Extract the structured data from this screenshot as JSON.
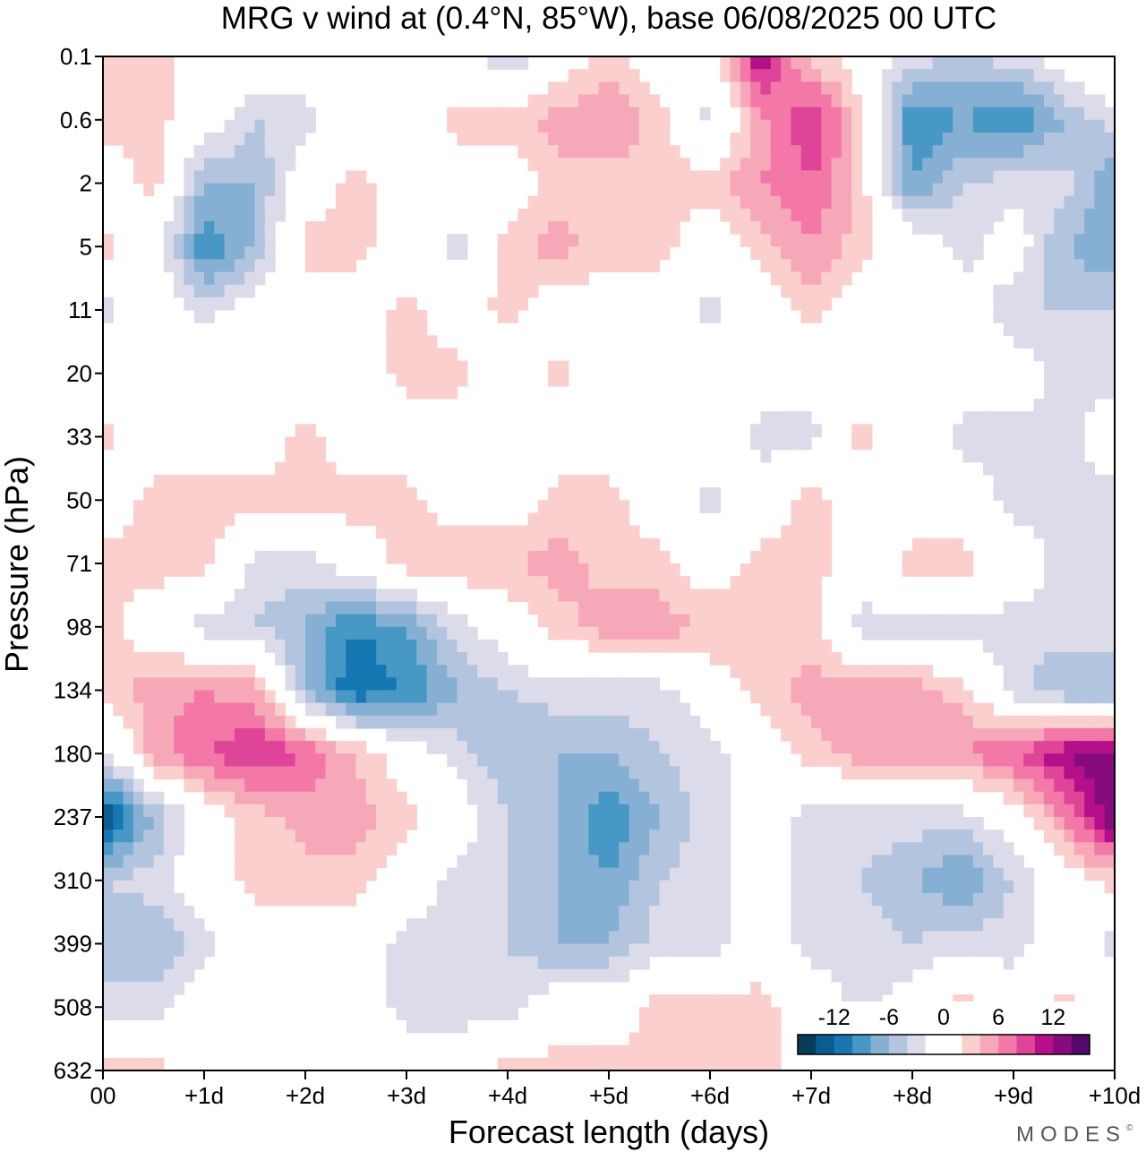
{
  "chart_data": {
    "type": "heatmap",
    "title": "MRG v wind at (0.4°N, 85°W),  base 06/08/2025  00 UTC",
    "xlabel": "Forecast length (days)",
    "ylabel": "Pressure (hPa)",
    "x_days": [
      0,
      0.5,
      1,
      1.5,
      2,
      2.5,
      3,
      3.5,
      4,
      4.5,
      5,
      5.5,
      6,
      6.5,
      7,
      7.5,
      8,
      8.5,
      9,
      9.5,
      10
    ],
    "x_ticks": [
      0,
      1,
      2,
      3,
      4,
      5,
      6,
      7,
      8,
      9,
      10
    ],
    "x_tick_labels": [
      "00",
      "+1d",
      "+2d",
      "+3d",
      "+4d",
      "+5d",
      "+6d",
      "+7d",
      "+8d",
      "+9d",
      "+10d"
    ],
    "pressure_levels": [
      0.1,
      0.6,
      2,
      5,
      11,
      20,
      33,
      50,
      71,
      98,
      134,
      180,
      237,
      310,
      399,
      508,
      632
    ],
    "y_tick_labels": [
      "0.1",
      "0.6",
      "2",
      "5",
      "11",
      "20",
      "33",
      "50",
      "71",
      "98",
      "134",
      "180",
      "237",
      "310",
      "399",
      "508",
      "632"
    ],
    "xlim": [
      0,
      10
    ],
    "ylim": [
      0.1,
      632
    ],
    "units": "m/s",
    "values": [
      [
        3,
        3,
        0,
        0,
        0,
        0,
        0,
        0,
        -4,
        0,
        3,
        0,
        0,
        12,
        3,
        0,
        -3,
        -4,
        -3,
        0,
        2
      ],
      [
        3,
        3,
        0,
        -4,
        -3,
        0,
        0,
        3,
        3,
        5,
        6,
        3,
        -3,
        5,
        10,
        3,
        -10,
        -8,
        -10,
        -6,
        -3
      ],
      [
        0,
        3,
        -6,
        -6,
        0,
        3,
        0,
        0,
        0,
        3,
        3,
        3,
        3,
        6,
        8,
        3,
        -8,
        -4,
        -3,
        -3,
        -8
      ],
      [
        3,
        0,
        -10,
        -6,
        3,
        3,
        0,
        -3,
        3,
        5,
        3,
        3,
        0,
        3,
        6,
        3,
        0,
        -3,
        0,
        -6,
        -8
      ],
      [
        -3,
        0,
        -3,
        0,
        0,
        0,
        3,
        0,
        3,
        0,
        0,
        0,
        -3,
        0,
        3,
        0,
        0,
        0,
        -4,
        -4,
        -4
      ],
      [
        0,
        0,
        0,
        0,
        0,
        0,
        3,
        3,
        0,
        3,
        0,
        0,
        0,
        0,
        0,
        0,
        0,
        0,
        0,
        -3,
        -3
      ],
      [
        3,
        0,
        0,
        0,
        3,
        0,
        0,
        0,
        0,
        0,
        0,
        0,
        0,
        -3,
        -3,
        3,
        0,
        -3,
        -3,
        -3,
        0
      ],
      [
        0,
        3,
        3,
        3,
        3,
        3,
        3,
        0,
        0,
        3,
        3,
        0,
        -3,
        0,
        3,
        0,
        0,
        0,
        -3,
        -3,
        -3
      ],
      [
        3,
        3,
        3,
        -3,
        -3,
        0,
        3,
        4,
        4,
        5,
        3,
        3,
        0,
        3,
        3,
        0,
        3,
        3,
        0,
        -3,
        -4
      ],
      [
        3,
        0,
        -3,
        -4,
        -6,
        -10,
        -8,
        -3,
        0,
        3,
        5,
        5,
        4,
        3,
        3,
        -3,
        -3,
        -3,
        -3,
        -3,
        -3
      ],
      [
        3,
        5,
        6,
        5,
        -6,
        -12,
        -10,
        -6,
        -4,
        -3,
        -3,
        -3,
        0,
        3,
        5,
        5,
        5,
        3,
        -3,
        -6,
        -6
      ],
      [
        -3,
        5,
        8,
        10,
        8,
        4,
        0,
        -3,
        -6,
        -6,
        -6,
        -4,
        -3,
        0,
        3,
        5,
        5,
        6,
        8,
        12,
        14
      ],
      [
        -14,
        -6,
        0,
        3,
        5,
        5,
        3,
        0,
        -4,
        -6,
        -10,
        -6,
        -3,
        0,
        -3,
        -3,
        -3,
        -3,
        0,
        6,
        14
      ],
      [
        -4,
        -3,
        0,
        3,
        3,
        3,
        0,
        -3,
        -4,
        -6,
        -8,
        -4,
        -3,
        0,
        -3,
        -4,
        -6,
        -8,
        -4,
        0,
        3
      ],
      [
        -6,
        -6,
        -3,
        0,
        0,
        0,
        -3,
        -3,
        -4,
        -6,
        -6,
        -3,
        -3,
        0,
        -3,
        -3,
        -4,
        -3,
        -3,
        0,
        -3
      ],
      [
        -3,
        -3,
        0,
        0,
        0,
        0,
        -3,
        -3,
        -3,
        0,
        0,
        3,
        3,
        3,
        0,
        -3,
        0,
        3,
        0,
        3,
        0
      ],
      [
        3,
        3,
        0,
        0,
        0,
        0,
        0,
        0,
        3,
        3,
        3,
        3,
        4,
        3,
        0,
        0,
        0,
        0,
        0,
        0,
        0
      ]
    ],
    "colorbar": {
      "levels": [
        -16,
        -14,
        -12,
        -10,
        -8,
        -6,
        -4,
        -2,
        0,
        2,
        4,
        6,
        8,
        10,
        12,
        14,
        16
      ],
      "tick_values": [
        -12,
        -6,
        0,
        6,
        12
      ],
      "tick_labels": [
        "-12",
        "-6",
        "0",
        "6",
        "12"
      ],
      "colors": [
        "#083c5a",
        "#0b5c90",
        "#1677b3",
        "#4898c6",
        "#86b0d3",
        "#b3c4df",
        "#dcdbea",
        "#ffffff",
        "#ffffff",
        "#fccfcf",
        "#f6a8b8",
        "#f378a7",
        "#de4599",
        "#b5108a",
        "#860c7d",
        "#510a6c"
      ]
    }
  },
  "branding": {
    "logo_text": "MODES",
    "logo_mark": "©"
  }
}
